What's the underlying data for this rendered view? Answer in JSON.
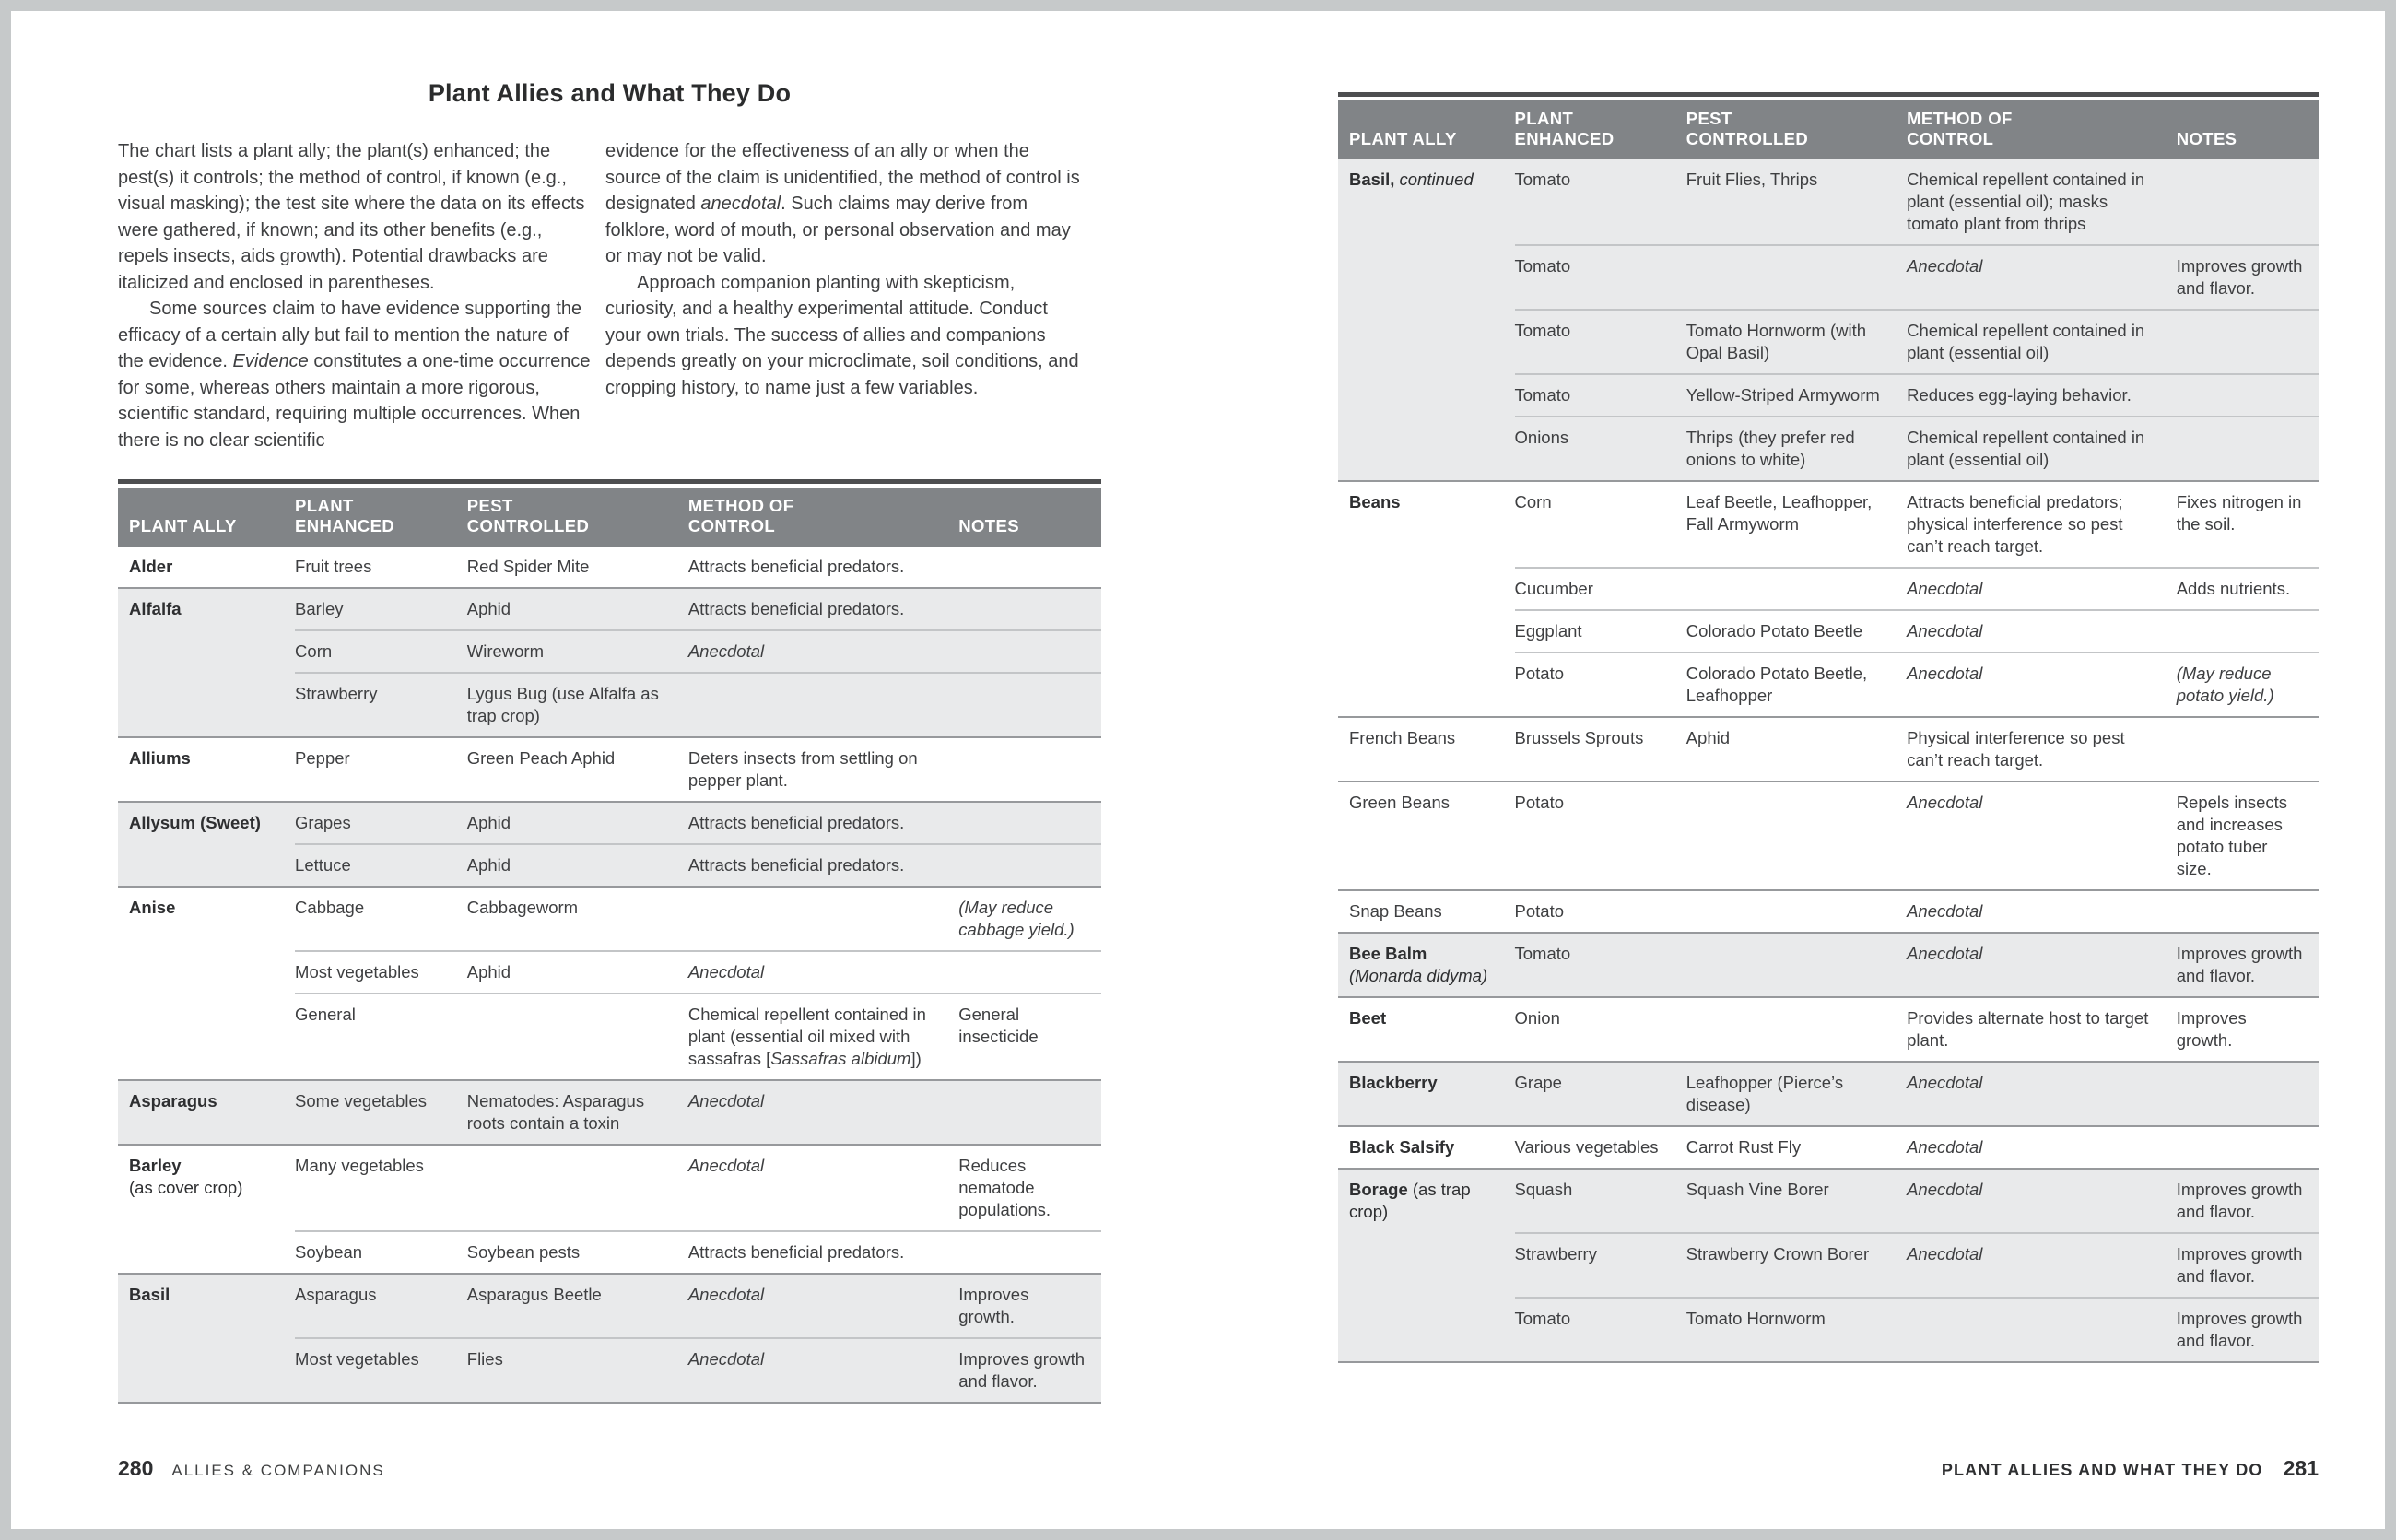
{
  "colors": {
    "page_background": "#ffffff",
    "frame_border": "#c6c9ca",
    "table_header_bg": "#818487",
    "table_header_text": "#ffffff",
    "row_shade": "#e9eaeb",
    "top_rule": "#4d4e50",
    "group_divider": "#97999c",
    "inner_divider": "#c3c5c7",
    "body_text": "#3e3f41",
    "heading_text": "#2b2c2d"
  },
  "left_page": {
    "title": "Plant Allies and What They Do",
    "intro_col1": [
      {
        "indent": false,
        "segments": [
          {
            "t": "The chart lists a plant ally; the plant(s) enhanced; the pest(s) it controls; the method of control, if known (e.g., visual masking); the test site where the data on its effects were gathered, if known; and its other benefits (e.g., repels insects, aids growth). Potential drawbacks are italicized and enclosed in parentheses."
          }
        ]
      },
      {
        "indent": true,
        "segments": [
          {
            "t": "Some sources claim to have evidence supporting the efficacy of a certain ally but fail to mention the nature of the evidence. "
          },
          {
            "t": "Evidence",
            "i": true
          },
          {
            "t": " constitutes a one-time occurrence for some, whereas others maintain a more rigorous, scientific standard, requiring multiple occurrences. When there is no clear scientific"
          }
        ]
      }
    ],
    "intro_col2": [
      {
        "indent": false,
        "segments": [
          {
            "t": "evidence for the effectiveness of an ally or when the source of the claim is unidentified, the method of control is designated "
          },
          {
            "t": "anecdotal",
            "i": true
          },
          {
            "t": ". Such claims may derive from folklore, word of mouth, or personal observation and may or may not be valid."
          }
        ]
      },
      {
        "indent": true,
        "segments": [
          {
            "t": "Approach companion planting with skepticism, curiosity, and a healthy experimental attitude. Conduct your own trials. The success of allies and companions depends greatly on your microclimate, soil conditions, and cropping history, to name just a few variables."
          }
        ]
      }
    ],
    "table": {
      "headers": [
        [
          "PLANT ALLY"
        ],
        [
          "PLANT",
          "ENHANCED"
        ],
        [
          "PEST",
          "CONTROLLED"
        ],
        [
          "METHOD OF",
          "CONTROL"
        ],
        [
          "NOTES"
        ]
      ],
      "groups": [
        {
          "ally": {
            "name": "Alder"
          },
          "shade": false,
          "rows": [
            {
              "enhanced": "Fruit trees",
              "pest": "Red Spider Mite",
              "method": "Attracts beneficial predators.",
              "notes": ""
            }
          ]
        },
        {
          "ally": {
            "name": "Alfalfa"
          },
          "shade": true,
          "rows": [
            {
              "enhanced": "Barley",
              "pest": "Aphid",
              "method": "Attracts beneficial predators.",
              "notes": ""
            },
            {
              "enhanced": "Corn",
              "pest": "Wireworm",
              "method": [
                {
                  "t": "Anecdotal",
                  "i": true
                }
              ],
              "notes": ""
            },
            {
              "enhanced": "Strawberry",
              "pest": "Lygus Bug (use Alfalfa as trap crop)",
              "method": "",
              "notes": ""
            }
          ]
        },
        {
          "ally": {
            "name": "Alliums"
          },
          "shade": false,
          "rows": [
            {
              "enhanced": "Pepper",
              "pest": "Green Peach Aphid",
              "method": "Deters insects from settling on pepper plant.",
              "notes": ""
            }
          ]
        },
        {
          "ally": {
            "name": "Allysum (Sweet)"
          },
          "shade": true,
          "rows": [
            {
              "enhanced": "Grapes",
              "pest": "Aphid",
              "method": "Attracts beneficial predators.",
              "notes": ""
            },
            {
              "enhanced": "Lettuce",
              "pest": "Aphid",
              "method": "Attracts beneficial predators.",
              "notes": ""
            }
          ]
        },
        {
          "ally": {
            "name": "Anise"
          },
          "shade": false,
          "rows": [
            {
              "enhanced": "Cabbage",
              "pest": "Cabbageworm",
              "method": "",
              "notes": [
                {
                  "t": "(May reduce cabbage yield.)",
                  "i": true
                }
              ]
            },
            {
              "enhanced": "Most vegetables",
              "pest": "Aphid",
              "method": [
                {
                  "t": "Anecdotal",
                  "i": true
                }
              ],
              "notes": ""
            },
            {
              "enhanced": "General",
              "pest": "",
              "method": [
                {
                  "t": "Chemical repellent contained in plant (essential oil mixed with sassafras ["
                },
                {
                  "t": "Sassafras albidum",
                  "i": true
                },
                {
                  "t": "])"
                }
              ],
              "notes": "General insecticide"
            }
          ]
        },
        {
          "ally": {
            "name": "Asparagus"
          },
          "shade": true,
          "rows": [
            {
              "enhanced": "Some vegetables",
              "pest": "Nematodes: Asparagus roots contain a toxin",
              "method": [
                {
                  "t": "Anecdotal",
                  "i": true
                }
              ],
              "notes": ""
            }
          ]
        },
        {
          "ally": {
            "name": "Barley",
            "suffix": "(as cover crop)",
            "suffix_block": true
          },
          "shade": false,
          "rows": [
            {
              "enhanced": "Many vegetables",
              "pest": "",
              "method": [
                {
                  "t": "Anecdotal",
                  "i": true
                }
              ],
              "notes": "Reduces nematode populations."
            },
            {
              "enhanced": "Soybean",
              "pest": "Soybean pests",
              "method": "Attracts beneficial predators.",
              "notes": ""
            }
          ]
        },
        {
          "ally": {
            "name": "Basil"
          },
          "shade": true,
          "rows": [
            {
              "enhanced": "Asparagus",
              "pest": "Asparagus Beetle",
              "method": [
                {
                  "t": "Anecdotal",
                  "i": true
                }
              ],
              "notes": "Improves growth."
            },
            {
              "enhanced": "Most vegetables",
              "pest": "Flies",
              "method": [
                {
                  "t": "Anecdotal",
                  "i": true
                }
              ],
              "notes": "Improves growth and flavor."
            }
          ]
        }
      ]
    },
    "footer": {
      "page_number": "280",
      "section": "ALLIES & COMPANIONS"
    }
  },
  "right_page": {
    "table": {
      "headers": [
        [
          "PLANT ALLY"
        ],
        [
          "PLANT",
          "ENHANCED"
        ],
        [
          "PEST",
          "CONTROLLED"
        ],
        [
          "METHOD OF",
          "CONTROL"
        ],
        [
          "NOTES"
        ]
      ],
      "groups": [
        {
          "ally": {
            "name": "Basil,",
            "suffix": "continued",
            "suffix_italic": true
          },
          "shade": true,
          "rows": [
            {
              "enhanced": "Tomato",
              "pest": "Fruit Flies, Thrips",
              "method": "Chemical repellent contained in plant (essential oil); masks tomato plant from thrips",
              "notes": ""
            },
            {
              "enhanced": "Tomato",
              "pest": "",
              "method": [
                {
                  "t": "Anecdotal",
                  "i": true
                }
              ],
              "notes": "Improves growth and flavor."
            },
            {
              "enhanced": "Tomato",
              "pest": "Tomato Hornworm (with Opal Basil)",
              "method": "Chemical repellent contained in plant (essential oil)",
              "notes": ""
            },
            {
              "enhanced": "Tomato",
              "pest": "Yellow-Striped Armyworm",
              "method": "Reduces egg-laying behavior.",
              "notes": ""
            },
            {
              "enhanced": "Onions",
              "pest": "Thrips (they prefer red onions to white)",
              "method": "Chemical repellent contained in plant (essential oil)",
              "notes": ""
            }
          ]
        },
        {
          "ally": {
            "name": "Beans"
          },
          "shade": false,
          "rows": [
            {
              "enhanced": "Corn",
              "pest": "Leaf Beetle, Leafhopper, Fall Armyworm",
              "method": "Attracts beneficial predators; physical interference so pest can’t reach target.",
              "notes": "Fixes nitrogen in the soil."
            },
            {
              "enhanced": "Cucumber",
              "pest": "",
              "method": [
                {
                  "t": "Anecdotal",
                  "i": true
                }
              ],
              "notes": "Adds nutrients."
            },
            {
              "enhanced": "Eggplant",
              "pest": "Colorado Potato Beetle",
              "method": [
                {
                  "t": "Anecdotal",
                  "i": true
                }
              ],
              "notes": ""
            },
            {
              "enhanced": "Potato",
              "pest": "Colorado Potato Beetle, Leafhopper",
              "method": [
                {
                  "t": "Anecdotal",
                  "i": true
                }
              ],
              "notes": [
                {
                  "t": "(May reduce potato yield.)",
                  "i": true
                }
              ]
            }
          ]
        },
        {
          "ally": {
            "name": "French Beans",
            "bold": false
          },
          "shade": false,
          "rows": [
            {
              "enhanced": "Brussels Sprouts",
              "pest": "Aphid",
              "method": "Physical interference so pest can’t reach target.",
              "notes": ""
            }
          ]
        },
        {
          "ally": {
            "name": "Green Beans",
            "bold": false
          },
          "shade": false,
          "rows": [
            {
              "enhanced": "Potato",
              "pest": "",
              "method": [
                {
                  "t": "Anecdotal",
                  "i": true
                }
              ],
              "notes": "Repels insects and increases potato tuber size."
            }
          ]
        },
        {
          "ally": {
            "name": "Snap Beans",
            "bold": false
          },
          "shade": false,
          "rows": [
            {
              "enhanced": "Potato",
              "pest": "",
              "method": [
                {
                  "t": "Anecdotal",
                  "i": true
                }
              ],
              "notes": ""
            }
          ]
        },
        {
          "ally": {
            "name": "Bee Balm",
            "suffix": "(Monarda didyma)",
            "suffix_italic": true,
            "suffix_block": true
          },
          "shade": true,
          "rows": [
            {
              "enhanced": "Tomato",
              "pest": "",
              "method": [
                {
                  "t": "Anecdotal",
                  "i": true
                }
              ],
              "notes": "Improves growth and flavor."
            }
          ]
        },
        {
          "ally": {
            "name": "Beet"
          },
          "shade": false,
          "rows": [
            {
              "enhanced": "Onion",
              "pest": "",
              "method": "Provides alternate host to target plant.",
              "notes": "Improves growth."
            }
          ]
        },
        {
          "ally": {
            "name": "Blackberry"
          },
          "shade": true,
          "rows": [
            {
              "enhanced": "Grape",
              "pest": "Leafhopper (Pierce’s disease)",
              "method": [
                {
                  "t": "Anecdotal",
                  "i": true
                }
              ],
              "notes": ""
            }
          ]
        },
        {
          "ally": {
            "name": "Black Salsify"
          },
          "shade": false,
          "rows": [
            {
              "enhanced": "Various vegetables",
              "pest": "Carrot Rust Fly",
              "method": [
                {
                  "t": "Anecdotal",
                  "i": true
                }
              ],
              "notes": ""
            }
          ]
        },
        {
          "ally": {
            "name": "Borage",
            "suffix": "(as trap crop)"
          },
          "shade": true,
          "rows": [
            {
              "enhanced": "Squash",
              "pest": "Squash Vine Borer",
              "method": [
                {
                  "t": "Anecdotal",
                  "i": true
                }
              ],
              "notes": "Improves growth and flavor."
            },
            {
              "enhanced": "Strawberry",
              "pest": "Strawberry Crown Borer",
              "method": [
                {
                  "t": "Anecdotal",
                  "i": true
                }
              ],
              "notes": "Improves growth and flavor."
            },
            {
              "enhanced": "Tomato",
              "pest": "Tomato Hornworm",
              "method": "",
              "notes": "Improves growth and flavor."
            }
          ]
        }
      ]
    },
    "footer": {
      "label": "PLANT ALLIES AND WHAT THEY DO",
      "page_number": "281"
    }
  }
}
